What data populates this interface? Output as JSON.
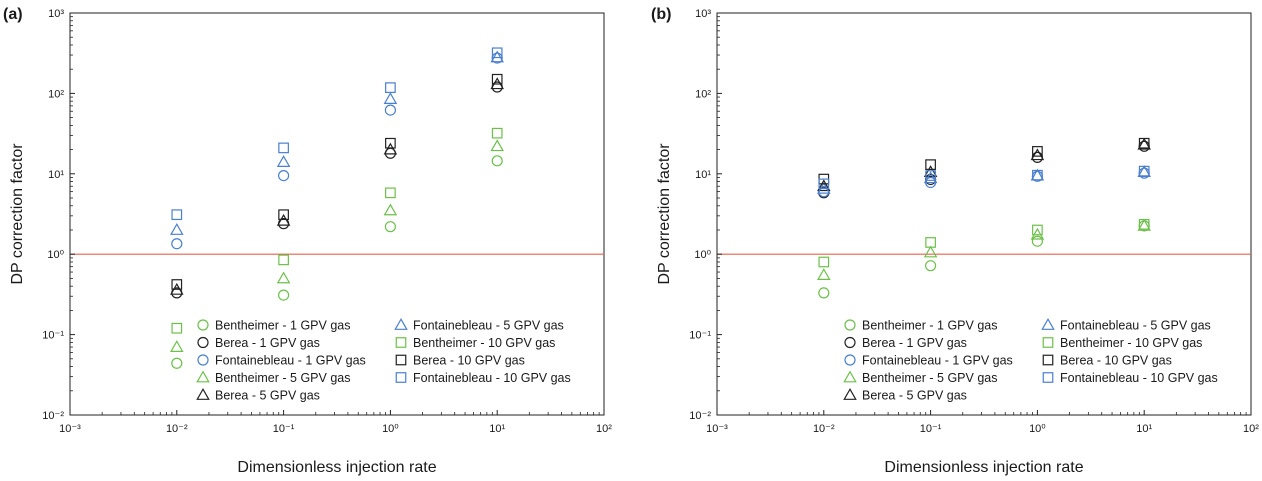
{
  "colors": {
    "Bentheimer": "#6cc04a",
    "Berea": "#222222",
    "Fontainebleau": "#4a7fd0",
    "reference_line": "#e8604c"
  },
  "marker_shapes": {
    "1 GPV": "circle",
    "5 GPV": "triangle",
    "10 GPV": "square"
  },
  "chart_data": [
    {
      "panel_label": "(a)",
      "type": "scatter",
      "xlabel": "Dimensionless injection rate",
      "ylabel": "DP correction factor",
      "x_scale": "log",
      "y_scale": "log",
      "xlim": [
        0.001,
        100
      ],
      "ylim": [
        0.01,
        1000
      ],
      "x_ticks": [
        "10⁻³",
        "10⁻²",
        "10⁻¹",
        "10⁰",
        "10¹",
        "10²"
      ],
      "y_ticks": [
        "10⁻²",
        "10⁻¹",
        "10⁰",
        "10¹",
        "10²",
        "10³"
      ],
      "reference_line_y": 1,
      "legend_position": "lower-center",
      "series": [
        {
          "name": "Bentheimer - 1 GPV gas",
          "rock": "Bentheimer",
          "marker": "circle",
          "x": [
            0.01,
            0.1,
            1,
            10
          ],
          "y": [
            0.044,
            0.31,
            2.2,
            14.5
          ]
        },
        {
          "name": "Berea - 1 GPV gas",
          "rock": "Berea",
          "marker": "circle",
          "x": [
            0.01,
            0.1,
            1,
            10
          ],
          "y": [
            0.33,
            2.4,
            18,
            120
          ]
        },
        {
          "name": "Fontainebleau - 1 GPV gas",
          "rock": "Fontainebleau",
          "marker": "circle",
          "x": [
            0.01,
            0.1,
            1,
            10
          ],
          "y": [
            1.35,
            9.5,
            62,
            275
          ]
        },
        {
          "name": "Bentheimer - 5 GPV gas",
          "rock": "Bentheimer",
          "marker": "triangle",
          "x": [
            0.01,
            0.1,
            1,
            10
          ],
          "y": [
            0.07,
            0.5,
            3.5,
            22
          ]
        },
        {
          "name": "Berea - 5 GPV gas",
          "rock": "Berea",
          "marker": "triangle",
          "x": [
            0.01,
            0.1,
            1,
            10
          ],
          "y": [
            0.36,
            2.6,
            20,
            130
          ]
        },
        {
          "name": "Fontainebleau - 5 GPV gas",
          "rock": "Fontainebleau",
          "marker": "triangle",
          "x": [
            0.01,
            0.1,
            1,
            10
          ],
          "y": [
            2.0,
            14,
            85,
            280
          ]
        },
        {
          "name": "Bentheimer - 10 GPV gas",
          "rock": "Bentheimer",
          "marker": "square",
          "x": [
            0.01,
            0.1,
            1,
            10
          ],
          "y": [
            0.12,
            0.85,
            5.8,
            32
          ]
        },
        {
          "name": "Berea - 10 GPV gas",
          "rock": "Berea",
          "marker": "square",
          "x": [
            0.01,
            0.1,
            1,
            10
          ],
          "y": [
            0.42,
            3.1,
            24,
            150
          ]
        },
        {
          "name": "Fontainebleau - 10 GPV gas",
          "rock": "Fontainebleau",
          "marker": "square",
          "x": [
            0.01,
            0.1,
            1,
            10
          ],
          "y": [
            3.1,
            21,
            118,
            320
          ]
        }
      ]
    },
    {
      "panel_label": "(b)",
      "type": "scatter",
      "xlabel": "Dimensionless injection rate",
      "ylabel": "DP correction factor",
      "x_scale": "log",
      "y_scale": "log",
      "xlim": [
        0.001,
        100
      ],
      "ylim": [
        0.01,
        1000
      ],
      "x_ticks": [
        "10⁻³",
        "10⁻²",
        "10⁻¹",
        "10⁰",
        "10¹",
        "10²"
      ],
      "y_ticks": [
        "10⁻²",
        "10⁻¹",
        "10⁰",
        "10¹",
        "10²",
        "10³"
      ],
      "reference_line_y": 1,
      "legend_position": "lower-center",
      "series": [
        {
          "name": "Bentheimer - 1 GPV gas",
          "rock": "Bentheimer",
          "marker": "circle",
          "x": [
            0.01,
            0.1,
            1,
            10
          ],
          "y": [
            0.33,
            0.72,
            1.45,
            2.25
          ]
        },
        {
          "name": "Berea - 1 GPV gas",
          "rock": "Berea",
          "marker": "circle",
          "x": [
            0.01,
            0.1,
            1,
            10
          ],
          "y": [
            5.8,
            8.5,
            16,
            22
          ]
        },
        {
          "name": "Fontainebleau - 1 GPV gas",
          "rock": "Fontainebleau",
          "marker": "circle",
          "x": [
            0.01,
            0.1,
            1,
            10
          ],
          "y": [
            6.0,
            7.8,
            9.3,
            10.2
          ]
        },
        {
          "name": "Bentheimer - 5 GPV gas",
          "rock": "Bentheimer",
          "marker": "triangle",
          "x": [
            0.01,
            0.1,
            1,
            10
          ],
          "y": [
            0.55,
            1.05,
            1.75,
            2.25
          ]
        },
        {
          "name": "Berea - 5 GPV gas",
          "rock": "Berea",
          "marker": "triangle",
          "x": [
            0.01,
            0.1,
            1,
            10
          ],
          "y": [
            7.0,
            10.5,
            17,
            23
          ]
        },
        {
          "name": "Fontainebleau - 5 GPV gas",
          "rock": "Fontainebleau",
          "marker": "triangle",
          "x": [
            0.01,
            0.1,
            1,
            10
          ],
          "y": [
            6.5,
            8.8,
            9.5,
            10.5
          ]
        },
        {
          "name": "Bentheimer - 10 GPV gas",
          "rock": "Bentheimer",
          "marker": "square",
          "x": [
            0.01,
            0.1,
            1,
            10
          ],
          "y": [
            0.8,
            1.4,
            2.0,
            2.35
          ]
        },
        {
          "name": "Berea - 10 GPV gas",
          "rock": "Berea",
          "marker": "square",
          "x": [
            0.01,
            0.1,
            1,
            10
          ],
          "y": [
            8.6,
            13,
            19,
            24
          ]
        },
        {
          "name": "Fontainebleau - 10 GPV gas",
          "rock": "Fontainebleau",
          "marker": "square",
          "x": [
            0.01,
            0.1,
            1,
            10
          ],
          "y": [
            7.5,
            9.5,
            9.6,
            10.8
          ]
        }
      ]
    }
  ]
}
